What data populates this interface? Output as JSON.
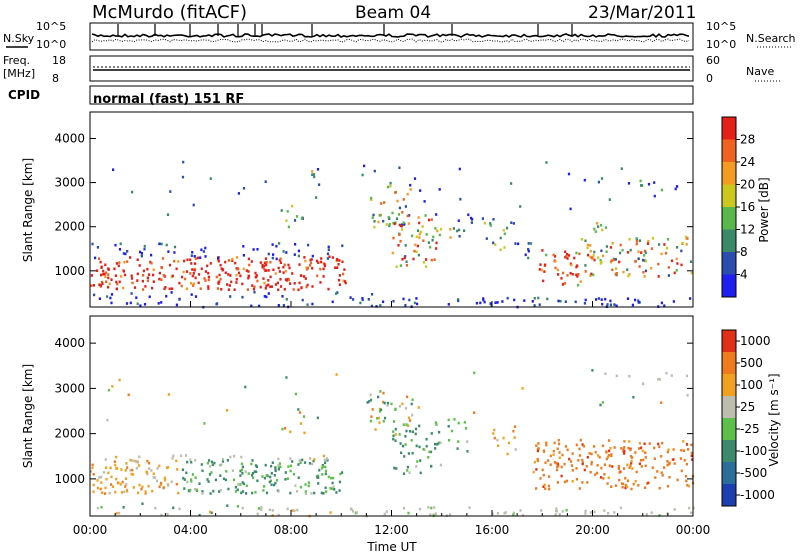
{
  "header": {
    "title": "McMurdo (fitACF)",
    "beam": "Beam 04",
    "date": "23/Mar/2011",
    "cpid_label": "CPID",
    "cpid_value": "normal (fast) 151 RF"
  },
  "noise_panel": {
    "left_label": "N.Sky",
    "right_label": "N.Search",
    "left_ticks": [
      "10^5",
      "10^0"
    ],
    "right_ticks": [
      "10^5",
      "10^0"
    ]
  },
  "freq_panel": {
    "left_label_1": "Freq.",
    "left_label_2": "[MHz]",
    "right_label": "Nave",
    "left_ticks": [
      "18",
      "8"
    ],
    "right_ticks": [
      "60",
      "0"
    ]
  },
  "chart_data": [
    {
      "type": "heatmap",
      "name": "power",
      "ylabel": "Slant Range [km]",
      "ylim": [
        180,
        4600
      ],
      "yticks": [
        1000,
        2000,
        3000,
        4000
      ],
      "colorbar_label": "Power [dB]",
      "colorbar_ticks": [
        "4",
        "8",
        "12",
        "16",
        "20",
        "24",
        "28"
      ],
      "colors": [
        "#1e1ef0",
        "#2a4db0",
        "#3a8a6a",
        "#59b84a",
        "#cbc71e",
        "#f59a22",
        "#f0631e",
        "#e32118"
      ]
    },
    {
      "type": "heatmap",
      "name": "velocity",
      "ylabel": "Slant Range [km]",
      "ylim": [
        180,
        4600
      ],
      "yticks": [
        1000,
        2000,
        3000,
        4000
      ],
      "colorbar_label": "Velocity [m s⁻¹]",
      "colorbar_ticks": [
        "1000",
        "500",
        "100",
        "25",
        "-25",
        "-100",
        "-500",
        "-1000"
      ],
      "colors": [
        "#1a3fb0",
        "#2a6e9a",
        "#3b8a6e",
        "#5cc04a",
        "#bdbdb0",
        "#f2a020",
        "#f07a1e",
        "#e03018"
      ]
    }
  ],
  "x_axis": {
    "label": "Time UT",
    "ticks": [
      "00:00",
      "04:00",
      "08:00",
      "12:00",
      "16:00",
      "20:00",
      "00:00"
    ]
  }
}
